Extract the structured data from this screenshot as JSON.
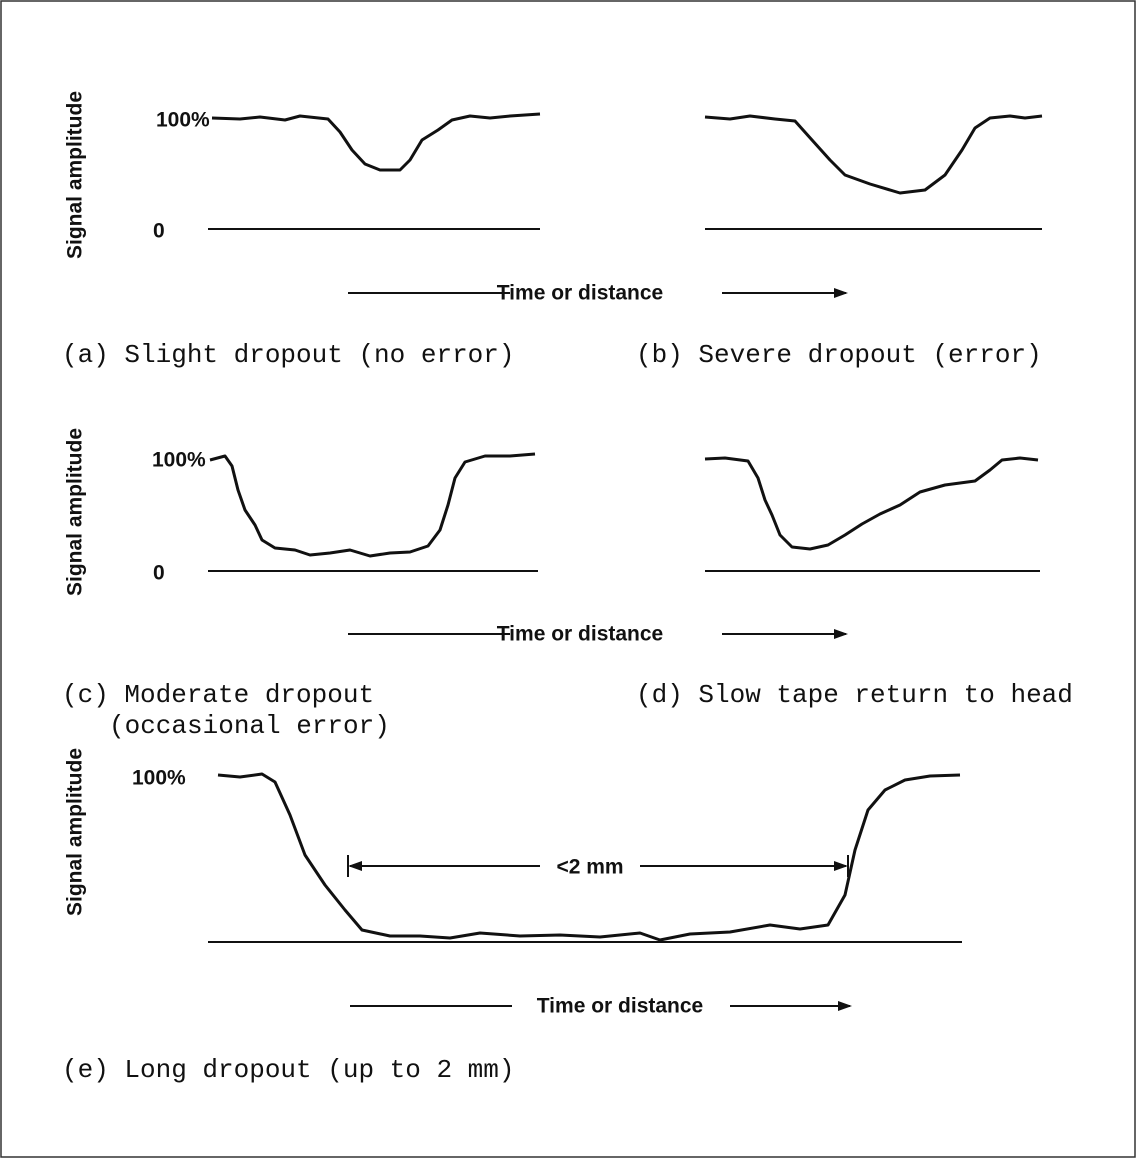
{
  "rows": [
    {
      "y_label": "Signal amplitude",
      "top_label": "100%",
      "bottom_label": "0",
      "x_label": "Time or distance",
      "captions": [
        "(a) Slight dropout (no error)",
        "(b) Severe dropout (error)"
      ]
    },
    {
      "y_label": "Signal amplitude",
      "top_label": "100%",
      "bottom_label": "0",
      "x_label": "Time or distance",
      "captions": [
        "(c) Moderate dropout",
        "(occasional error)",
        "(d) Slow tape return to head"
      ]
    },
    {
      "y_label": "Signal amplitude",
      "top_label": "100%",
      "x_label": "Time or distance",
      "dimension": "<2 mm",
      "captions": [
        "(e) Long dropout (up to 2 mm)"
      ]
    }
  ]
}
